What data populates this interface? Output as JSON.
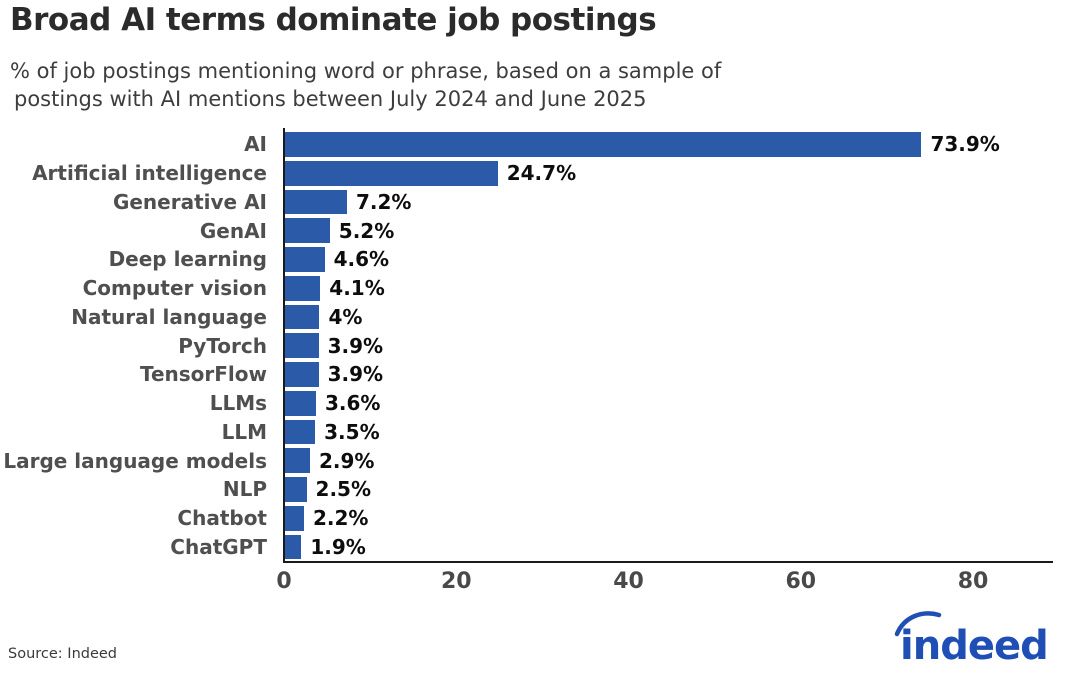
{
  "header": {
    "title": "Broad AI terms dominate job postings",
    "subtitle_line1": "% of job postings mentioning word or phrase, based on a sample of",
    "subtitle_line2": "postings with AI mentions between July 2024 and June 2025"
  },
  "chart_data": {
    "type": "bar",
    "orientation": "horizontal",
    "title": "Broad AI terms dominate job postings",
    "subtitle": "% of job postings mentioning word or phrase, based on a sample of postings with AI mentions between July 2024 and June 2025",
    "categories": [
      "AI",
      "Artificial intelligence",
      "Generative AI",
      "GenAI",
      "Deep learning",
      "Computer vision",
      "Natural language",
      "PyTorch",
      "TensorFlow",
      "LLMs",
      "LLM",
      "Large language models",
      "NLP",
      "Chatbot",
      "ChatGPT"
    ],
    "values": [
      73.9,
      24.7,
      7.2,
      5.2,
      4.6,
      4.1,
      4,
      3.9,
      3.9,
      3.6,
      3.5,
      2.9,
      2.5,
      2.2,
      1.9
    ],
    "value_labels": [
      "73.9%",
      "24.7%",
      "7.2%",
      "5.2%",
      "4.6%",
      "4.1%",
      "4%",
      "3.9%",
      "3.9%",
      "3.6%",
      "3.5%",
      "2.9%",
      "2.5%",
      "2.2%",
      "1.9%"
    ],
    "xlabel": "",
    "ylabel": "",
    "x_ticks": [
      0,
      20,
      40,
      60,
      80
    ],
    "xlim": [
      0,
      89
    ],
    "grid": false,
    "legend": false,
    "bar_color": "#2a5aa8"
  },
  "footer": {
    "source": "Source: Indeed",
    "logo_text": "indeed"
  },
  "colors": {
    "bar_blue": "#2a5aa8",
    "logo_blue": "#1f4eb5",
    "axis": "#1a1a1a",
    "title_text": "#2b2b2b",
    "category_text": "#4f4f4f",
    "value_text": "#0d0d0d"
  }
}
